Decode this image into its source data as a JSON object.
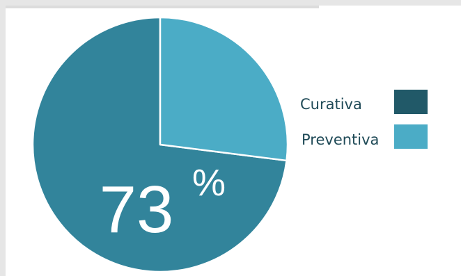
{
  "chart_data": {
    "type": "pie",
    "slices": [
      {
        "label": "Curativa",
        "value": 73,
        "color": "#32849b"
      },
      {
        "label": "Preventiva",
        "value": 27,
        "color": "#4bacc6"
      }
    ],
    "center_label": {
      "number": "73",
      "symbol": "%"
    },
    "legend": {
      "placement": "right",
      "items": [
        {
          "label": "Curativa",
          "color": "#215968"
        },
        {
          "label": "Preventiva",
          "color": "#4bacc6"
        }
      ]
    }
  }
}
